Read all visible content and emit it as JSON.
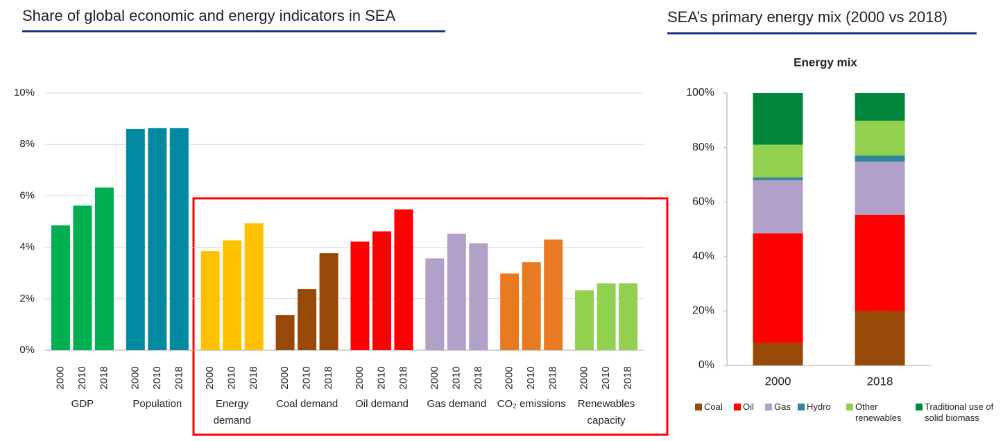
{
  "chart_data": [
    {
      "type": "bar",
      "title": "Share of global economic and energy indicators in SEA",
      "categories": [
        "2000",
        "2010",
        "2018"
      ],
      "series": [
        {
          "name": "GDP",
          "color": "#00b050",
          "values": [
            4.85,
            5.62,
            6.32
          ]
        },
        {
          "name": "Population",
          "color": "#00899f",
          "values": [
            8.6,
            8.63,
            8.63
          ]
        },
        {
          "name": "Energy demand",
          "color": "#ffc000",
          "values": [
            3.85,
            4.27,
            4.93
          ]
        },
        {
          "name": "Coal demand",
          "color": "#984807",
          "values": [
            1.37,
            2.37,
            3.77
          ]
        },
        {
          "name": "Oil demand",
          "color": "#ff0000",
          "values": [
            4.22,
            4.62,
            5.47
          ]
        },
        {
          "name": "Gas demand",
          "color": "#b1a0c7",
          "values": [
            3.57,
            4.53,
            4.15
          ]
        },
        {
          "name": "CO₂ emissions",
          "color": "#e87a22",
          "values": [
            2.98,
            3.42,
            4.3
          ]
        },
        {
          "name": "Renewables capacity",
          "color": "#92d050",
          "values": [
            2.33,
            2.6,
            2.6
          ]
        }
      ],
      "ylim": [
        0,
        10
      ],
      "yticks": [
        {
          "value": 0,
          "label": "0%"
        },
        {
          "value": 2,
          "label": "2%"
        },
        {
          "value": 4,
          "label": "4%"
        },
        {
          "value": 6,
          "label": "6%"
        },
        {
          "value": 8,
          "label": "8%"
        },
        {
          "value": 10,
          "label": "10%"
        }
      ],
      "grid": true
    },
    {
      "type": "stacked_bar",
      "title": "SEA’s primary energy mix (2000 vs 2018)",
      "subtitle": "Energy mix",
      "categories": [
        "2000",
        "2018"
      ],
      "series": [
        {
          "name": "Coal",
          "color": "#984807",
          "values": [
            8.3,
            20
          ]
        },
        {
          "name": "Oil",
          "color": "#ff0000",
          "values": [
            40.2,
            35.3
          ]
        },
        {
          "name": "Gas",
          "color": "#b1a0c7",
          "values": [
            19.5,
            19.5
          ]
        },
        {
          "name": "Hydro",
          "color": "#31849b",
          "values": [
            1,
            2.2
          ]
        },
        {
          "name": "Other renewables",
          "color": "#92d050",
          "values": [
            12,
            12.8
          ]
        },
        {
          "name": "Traditional use of solid biomass",
          "color": "#00873c",
          "values": [
            19,
            10.2
          ]
        }
      ],
      "ylim": [
        0,
        100
      ],
      "yticks": [
        {
          "value": 0,
          "label": "0%"
        },
        {
          "value": 20,
          "label": "20%"
        },
        {
          "value": 40,
          "label": "40%"
        },
        {
          "value": 60,
          "label": "60%"
        },
        {
          "value": 80,
          "label": "80%"
        },
        {
          "value": 100,
          "label": "100%"
        }
      ],
      "grid": false,
      "legend": "bottom"
    }
  ]
}
